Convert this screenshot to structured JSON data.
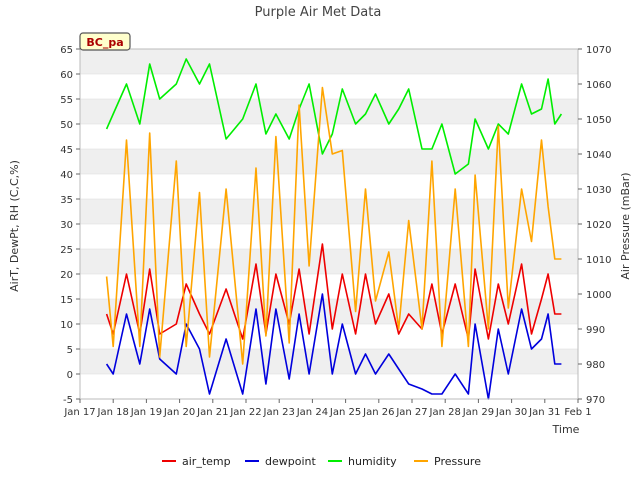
{
  "chart_data": {
    "type": "line",
    "title": "Purple Air Met Data",
    "station_tag": "BC_pa",
    "xlabel": "Time",
    "ylabel": "AirT, DewPt, RH (C,C,%)",
    "y2label": "Air Pressure (mBar)",
    "xlim": [
      17,
      32
    ],
    "x_ticks": [
      17,
      18,
      19,
      20,
      21,
      22,
      23,
      24,
      25,
      26,
      27,
      28,
      29,
      30,
      31,
      32
    ],
    "x_tick_labels": [
      "Jan 17",
      "Jan 18",
      "Jan 19",
      "Jan 20",
      "Jan 21",
      "Jan 22",
      "Jan 23",
      "Jan 24",
      "Jan 25",
      "Jan 26",
      "Jan 27",
      "Jan 28",
      "Jan 29",
      "Jan 30",
      "Jan 31",
      "Feb 1"
    ],
    "ylim": [
      -5,
      65
    ],
    "y_ticks": [
      -5,
      0,
      5,
      10,
      15,
      20,
      25,
      30,
      35,
      40,
      45,
      50,
      55,
      60,
      65
    ],
    "y2lim": [
      970,
      1070
    ],
    "y2_ticks": [
      970,
      980,
      990,
      1000,
      1010,
      1020,
      1030,
      1040,
      1050,
      1060,
      1070
    ],
    "grid": "horizontal bands",
    "legend_placement": "bottom",
    "series": [
      {
        "name": "air_temp",
        "axis": "left",
        "color": "#ee0000",
        "x": [
          17.8,
          18.0,
          18.4,
          18.8,
          19.1,
          19.4,
          19.9,
          20.2,
          20.6,
          20.9,
          21.4,
          21.9,
          22.3,
          22.6,
          22.9,
          23.3,
          23.6,
          23.9,
          24.3,
          24.6,
          24.9,
          25.3,
          25.6,
          25.9,
          26.3,
          26.6,
          26.9,
          27.3,
          27.6,
          27.9,
          28.3,
          28.7,
          28.9,
          29.3,
          29.6,
          29.9,
          30.3,
          30.6,
          30.9,
          31.1,
          31.3,
          31.5
        ],
        "values": [
          12,
          8,
          20,
          8,
          21,
          8,
          10,
          18,
          12,
          8,
          17,
          7,
          22,
          8,
          20,
          10,
          21,
          8,
          26,
          9,
          20,
          8,
          20,
          10,
          16,
          8,
          12,
          9,
          18,
          8,
          18,
          7,
          21,
          7,
          18,
          10,
          22,
          8,
          15,
          20,
          12,
          12
        ]
      },
      {
        "name": "dewpoint",
        "axis": "left",
        "color": "#0000dd",
        "x": [
          17.8,
          18.0,
          18.4,
          18.8,
          19.1,
          19.4,
          19.9,
          20.2,
          20.6,
          20.9,
          21.4,
          21.9,
          22.3,
          22.6,
          22.9,
          23.3,
          23.6,
          23.9,
          24.3,
          24.6,
          24.9,
          25.3,
          25.6,
          25.9,
          26.3,
          26.6,
          26.9,
          27.3,
          27.6,
          27.9,
          28.3,
          28.7,
          28.9,
          29.3,
          29.6,
          29.9,
          30.3,
          30.6,
          30.9,
          31.1,
          31.3,
          31.5
        ],
        "values": [
          2,
          0,
          12,
          2,
          13,
          3,
          0,
          10,
          5,
          -4,
          7,
          -4,
          13,
          -2,
          13,
          -1,
          12,
          0,
          16,
          0,
          10,
          0,
          4,
          0,
          4,
          1,
          -2,
          -3,
          -4,
          -4,
          0,
          -4,
          10,
          -5,
          9,
          0,
          13,
          5,
          7,
          12,
          2,
          2
        ]
      },
      {
        "name": "humidity",
        "axis": "left",
        "color": "#00ee00",
        "x": [
          17.8,
          18.0,
          18.4,
          18.8,
          19.1,
          19.4,
          19.9,
          20.2,
          20.6,
          20.9,
          21.4,
          21.9,
          22.3,
          22.6,
          22.9,
          23.3,
          23.6,
          23.9,
          24.3,
          24.6,
          24.9,
          25.3,
          25.6,
          25.9,
          26.3,
          26.6,
          26.9,
          27.3,
          27.6,
          27.9,
          28.3,
          28.7,
          28.9,
          29.3,
          29.6,
          29.9,
          30.3,
          30.6,
          30.9,
          31.1,
          31.3,
          31.5
        ],
        "values": [
          49,
          52,
          58,
          50,
          62,
          55,
          58,
          63,
          58,
          62,
          47,
          51,
          58,
          48,
          52,
          47,
          53,
          58,
          44,
          48,
          57,
          50,
          52,
          56,
          50,
          53,
          57,
          45,
          45,
          50,
          40,
          42,
          51,
          45,
          50,
          48,
          58,
          52,
          53,
          59,
          50,
          52
        ]
      },
      {
        "name": "Pressure",
        "axis": "right",
        "color": "#ffa500",
        "x": [
          17.8,
          18.0,
          18.4,
          18.8,
          19.1,
          19.4,
          19.9,
          20.2,
          20.6,
          20.9,
          21.4,
          21.9,
          22.3,
          22.6,
          22.9,
          23.3,
          23.6,
          23.9,
          24.3,
          24.6,
          24.9,
          25.3,
          25.6,
          25.9,
          26.3,
          26.6,
          26.9,
          27.3,
          27.6,
          27.9,
          28.3,
          28.7,
          28.9,
          29.3,
          29.6,
          29.9,
          30.3,
          30.6,
          30.9,
          31.1,
          31.3,
          31.5
        ],
        "values": [
          1005,
          985,
          1044,
          985,
          1046,
          982,
          1038,
          985,
          1029,
          982,
          1030,
          980,
          1036,
          988,
          1045,
          986,
          1054,
          1008,
          1059,
          1040,
          1041,
          995,
          1030,
          998,
          1012,
          990,
          1021,
          990,
          1038,
          985,
          1030,
          985,
          1034,
          990,
          1048,
          996,
          1030,
          1015,
          1044,
          1025,
          1010,
          1010
        ]
      }
    ]
  }
}
